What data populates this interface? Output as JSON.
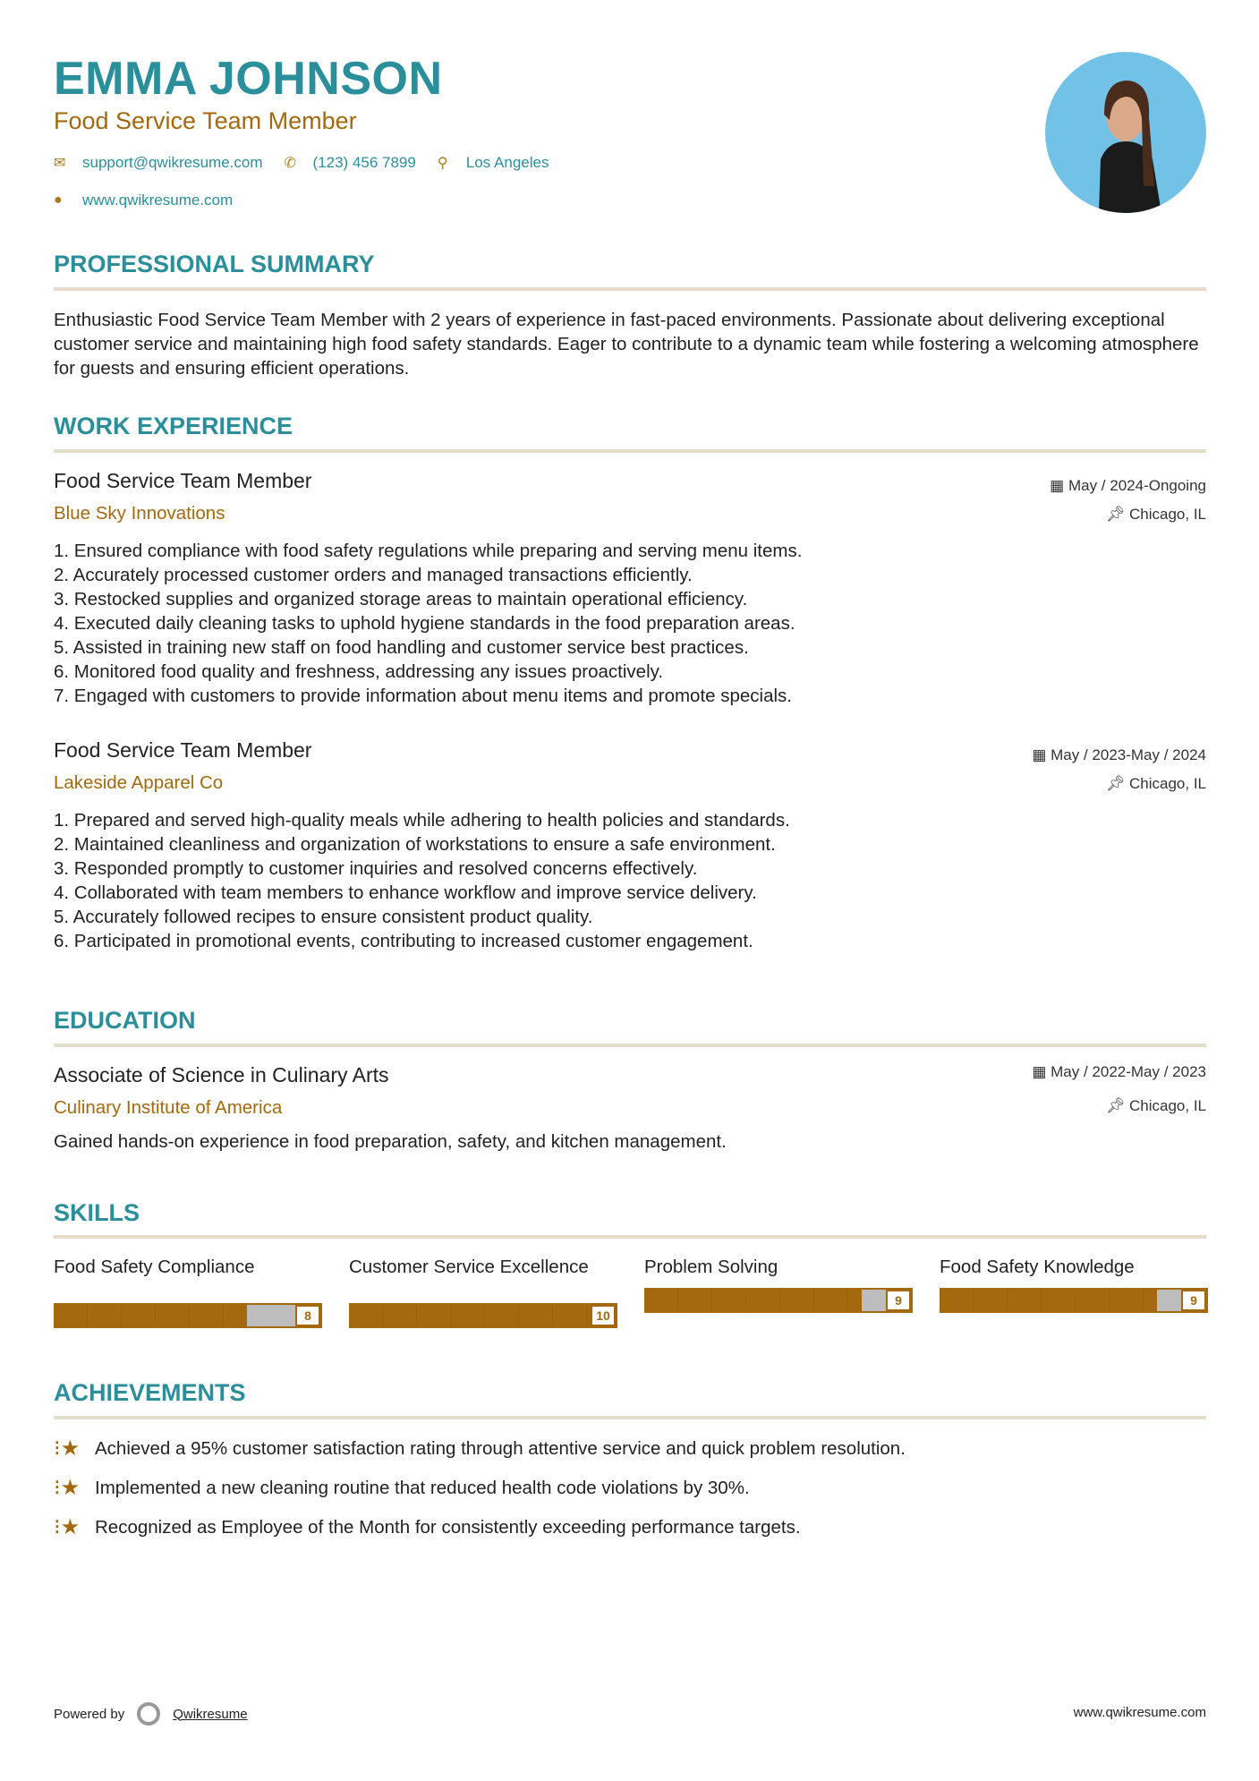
{
  "header": {
    "name": "EMMA JOHNSON",
    "title": "Food Service Team Member",
    "email": "support@qwikresume.com",
    "phone": "(123) 456 7899",
    "location": "Los Angeles",
    "website": "www.qwikresume.com"
  },
  "summary": {
    "heading": "PROFESSIONAL SUMMARY",
    "text": "Enthusiastic Food Service Team Member with 2 years of experience in fast-paced environments. Passionate about delivering exceptional customer service and maintaining high food safety standards. Eager to contribute to a dynamic team while fostering a welcoming atmosphere for guests and ensuring efficient operations."
  },
  "experience": {
    "heading": "WORK EXPERIENCE",
    "jobs": [
      {
        "title": "Food Service Team Member",
        "company": "Blue Sky Innovations",
        "date": "May / 2024-Ongoing",
        "location": "Chicago, IL",
        "items": [
          "1. Ensured compliance with food safety regulations while preparing and serving menu items.",
          "2. Accurately processed customer orders and managed transactions efficiently.",
          "3. Restocked supplies and organized storage areas to maintain operational efficiency.",
          "4. Executed daily cleaning tasks to uphold hygiene standards in the food preparation areas.",
          "5. Assisted in training new staff on food handling and customer service best practices.",
          "6. Monitored food quality and freshness, addressing any issues proactively.",
          "7. Engaged with customers to provide information about menu items and promote specials."
        ]
      },
      {
        "title": "Food Service Team Member",
        "company": "Lakeside Apparel Co",
        "date": "May / 2023-May / 2024",
        "location": "Chicago, IL",
        "items": [
          "1. Prepared and served high-quality meals while adhering to health policies and standards.",
          "2. Maintained cleanliness and organization of workstations to ensure a safe environment.",
          "3. Responded promptly to customer inquiries and resolved concerns effectively.",
          "4. Collaborated with team members to enhance workflow and improve service delivery.",
          "5. Accurately followed recipes to ensure consistent product quality.",
          "6. Participated in promotional events, contributing to increased customer engagement."
        ]
      }
    ]
  },
  "education": {
    "heading": "EDUCATION",
    "degree": "Associate of Science in Culinary Arts",
    "school": "Culinary Institute of America",
    "date": "May / 2022-May / 2023",
    "location": "Chicago, IL",
    "description": "Gained hands-on experience in food preparation, safety, and kitchen management."
  },
  "skills": {
    "heading": "SKILLS",
    "items": [
      {
        "name": "Food Safety Compliance",
        "level": 8
      },
      {
        "name": "Customer Service Excellence",
        "level": 10
      },
      {
        "name": "Problem Solving",
        "level": 9
      },
      {
        "name": "Food Safety Knowledge",
        "level": 9
      }
    ]
  },
  "achievements": {
    "heading": "ACHIEVEMENTS",
    "items": [
      "Achieved a 95% customer satisfaction rating through attentive service and quick problem resolution.",
      "Implemented a new cleaning routine that reduced health code violations by 30%.",
      "Recognized as Employee of the Month for consistently exceeding performance targets."
    ]
  },
  "footer": {
    "powered_by": "Powered by",
    "brand": "Qwikresume",
    "url": "www.qwikresume.com"
  },
  "colors": {
    "accent": "#2a8f9a",
    "secondary": "#a4690f"
  }
}
